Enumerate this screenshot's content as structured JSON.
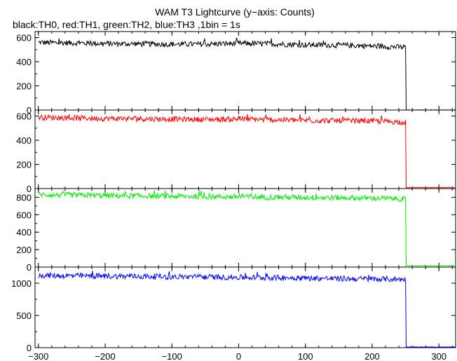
{
  "chart_data": {
    "type": "line",
    "title": "WAM T3 Lightcurve (y−axis: Counts)",
    "subtitle": "black:TH0, red:TH1, green:TH2, blue:TH3 ,1bin = 1s",
    "xlim": [
      -305,
      325
    ],
    "x_ticks": [
      -300,
      -200,
      -100,
      0,
      100,
      200,
      300
    ],
    "x_tick_labels": [
      "−300",
      "−200",
      "−100",
      "0",
      "100",
      "200",
      "300"
    ],
    "panels": [
      {
        "name": "TH0",
        "color": "#000000",
        "ylim": [
          0,
          650
        ],
        "yticks": [
          0,
          200,
          400,
          600
        ],
        "x": [
          -300,
          -250,
          -200,
          -150,
          -100,
          -50,
          0,
          50,
          100,
          150,
          200,
          250,
          251,
          325
        ],
        "y": [
          560,
          555,
          550,
          548,
          545,
          545,
          552,
          548,
          540,
          538,
          530,
          520,
          0,
          0
        ]
      },
      {
        "name": "TH1",
        "color": "#ff0000",
        "ylim": [
          0,
          650
        ],
        "yticks": [
          0,
          200,
          400,
          600
        ],
        "x": [
          -300,
          -250,
          -200,
          -150,
          -100,
          -50,
          0,
          50,
          100,
          150,
          200,
          250,
          251,
          325
        ],
        "y": [
          590,
          585,
          580,
          578,
          575,
          572,
          575,
          570,
          565,
          562,
          560,
          550,
          8,
          8
        ]
      },
      {
        "name": "TH2",
        "color": "#00ee00",
        "ylim": [
          0,
          900
        ],
        "yticks": [
          0,
          200,
          400,
          600,
          800
        ],
        "x": [
          -300,
          -250,
          -200,
          -150,
          -100,
          -50,
          0,
          50,
          100,
          150,
          200,
          250,
          251,
          325
        ],
        "y": [
          830,
          825,
          820,
          815,
          812,
          808,
          805,
          800,
          798,
          795,
          790,
          780,
          15,
          15
        ]
      },
      {
        "name": "TH3",
        "color": "#0000ff",
        "ylim": [
          0,
          1250
        ],
        "yticks": [
          0,
          500,
          1000
        ],
        "y_tick_labels": [
          "0",
          "500",
          "1000"
        ],
        "x": [
          -300,
          -250,
          -200,
          -150,
          -100,
          -50,
          0,
          50,
          100,
          150,
          200,
          250,
          251,
          325
        ],
        "y": [
          1120,
          1115,
          1110,
          1105,
          1100,
          1095,
          1090,
          1085,
          1080,
          1070,
          1065,
          1060,
          10,
          10
        ]
      }
    ]
  }
}
